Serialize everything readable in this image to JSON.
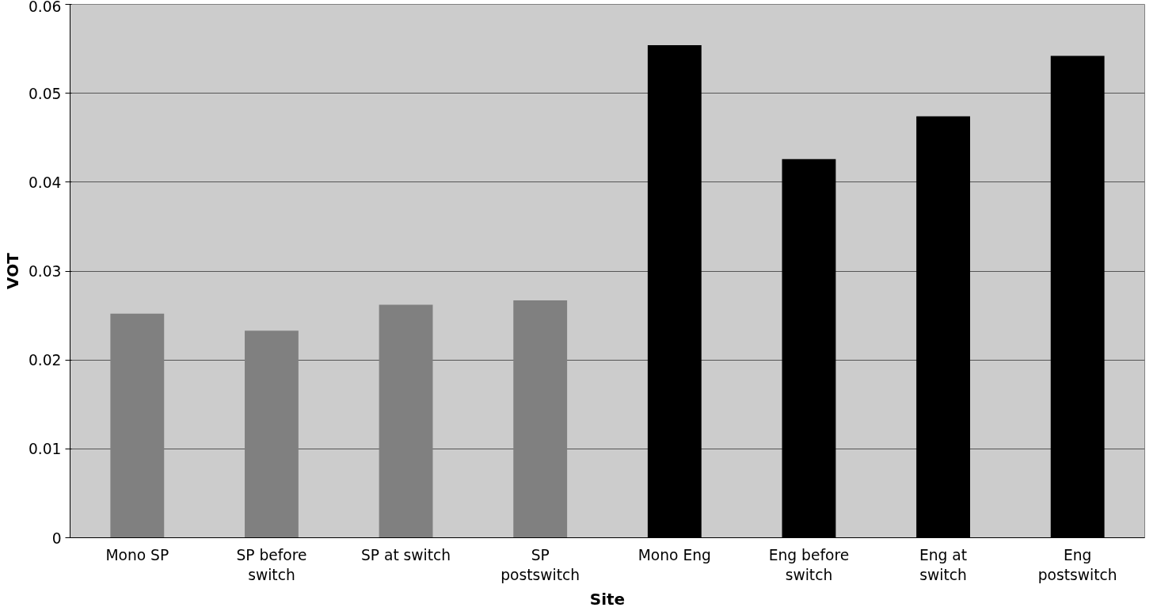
{
  "chart_data": {
    "type": "bar",
    "xlabel": "Site",
    "ylabel": "VOT",
    "categories": [
      "Mono SP",
      "SP before switch",
      "SP at switch",
      "SP postswitch",
      "Mono Eng",
      "Eng before switch",
      "Eng at switch",
      "Eng postswitch"
    ],
    "values": [
      0.0252,
      0.0233,
      0.0262,
      0.0267,
      0.0554,
      0.0426,
      0.0474,
      0.0542
    ],
    "colors": [
      "#808080",
      "#808080",
      "#808080",
      "#808080",
      "#000000",
      "#000000",
      "#000000",
      "#000000"
    ],
    "ylim": [
      0,
      0.06
    ],
    "yticks": [
      0,
      0.01,
      0.02,
      0.03,
      0.04,
      0.05,
      0.06
    ],
    "grid": "y"
  }
}
